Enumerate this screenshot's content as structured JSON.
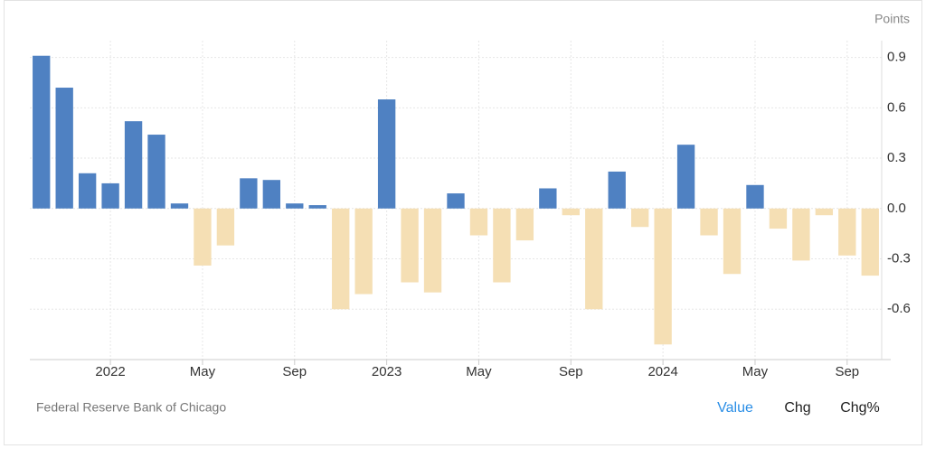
{
  "chart_data": {
    "type": "bar",
    "y_label": "Points",
    "source": "Federal Reserve Bank of Chicago",
    "tabs": [
      "Value",
      "Chg",
      "Chg%"
    ],
    "active_tab": 0,
    "categories": [
      null,
      null,
      null,
      "2022",
      null,
      null,
      null,
      "May",
      null,
      null,
      null,
      "Sep",
      null,
      null,
      null,
      "2023",
      null,
      null,
      null,
      "May",
      null,
      null,
      null,
      "Sep",
      null,
      null,
      null,
      "2024",
      null,
      null,
      null,
      "May",
      null,
      null,
      null,
      "Sep",
      null
    ],
    "values": [
      0.91,
      0.72,
      0.21,
      0.15,
      0.52,
      0.44,
      0.03,
      -0.34,
      -0.22,
      0.18,
      0.17,
      0.03,
      0.02,
      -0.6,
      -0.51,
      0.65,
      -0.44,
      -0.5,
      0.09,
      -0.16,
      -0.44,
      -0.19,
      0.12,
      -0.04,
      -0.6,
      0.22,
      -0.11,
      -0.81,
      0.38,
      -0.16,
      -0.39,
      0.14,
      -0.12,
      -0.31,
      -0.04,
      -0.28,
      -0.4
    ],
    "positive_color": "#4f81c2",
    "negative_color": "#f5dfb4",
    "ylim": [
      -0.9,
      1.0
    ],
    "yticks": [
      -0.6,
      -0.3,
      {
        "value": 0,
        "label": "0.0"
      },
      0.3,
      0.6,
      0.9
    ],
    "y_axis_side": "right",
    "grid": true
  }
}
